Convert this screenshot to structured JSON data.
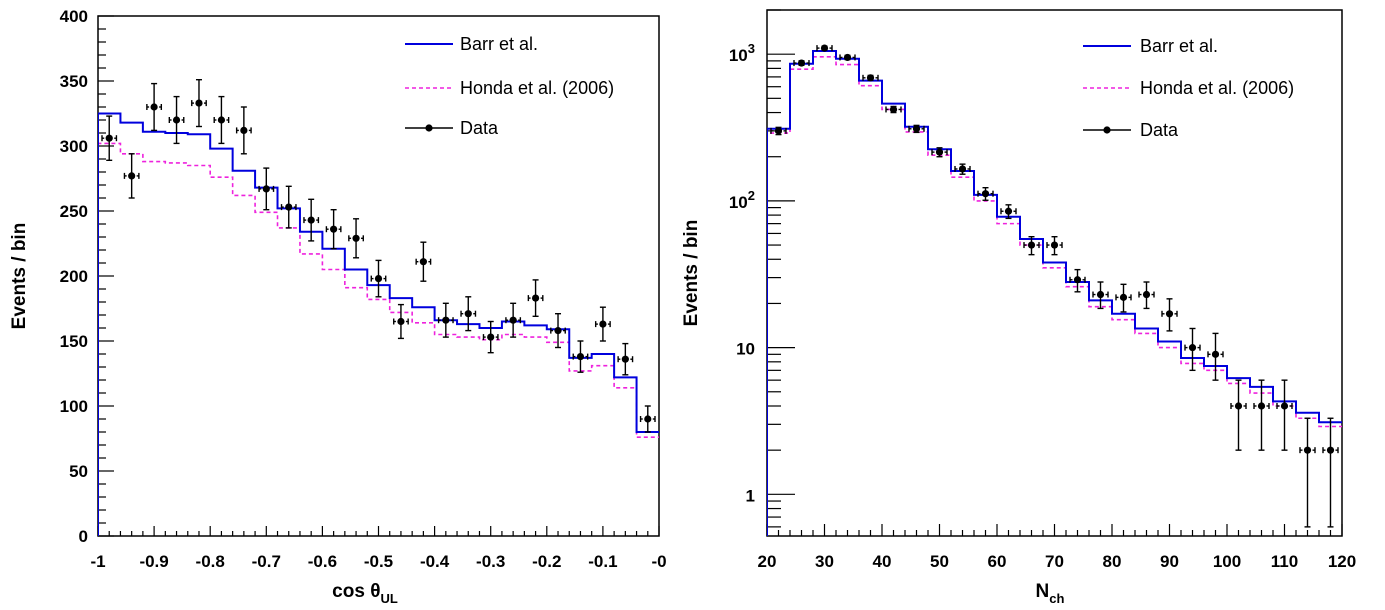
{
  "chart_data": [
    {
      "type": "line",
      "xlabel": "cos θ",
      "xlabel_sub": "UL",
      "ylabel": "Events / bin",
      "xlim": [
        -1,
        0
      ],
      "ylim": [
        0,
        400
      ],
      "xticks": [
        "-1",
        "-0.9",
        "-0.8",
        "-0.7",
        "-0.6",
        "-0.5",
        "-0.4",
        "-0.3",
        "-0.2",
        "-0.1",
        "-0"
      ],
      "yticks": [
        "0",
        "50",
        "100",
        "150",
        "200",
        "250",
        "300",
        "350",
        "400"
      ],
      "legend_position": "top-right",
      "bin_edges": [
        -1,
        -0.96,
        -0.92,
        -0.88,
        -0.84,
        -0.8,
        -0.76,
        -0.72,
        -0.68,
        -0.64,
        -0.6,
        -0.56,
        -0.52,
        -0.48,
        -0.44,
        -0.4,
        -0.36,
        -0.32,
        -0.28,
        -0.24,
        -0.2,
        -0.16,
        -0.12,
        -0.08,
        -0.04,
        0
      ],
      "series": [
        {
          "name": "Barr et al.",
          "kind": "histogram",
          "color": "#0000dd",
          "dash": "solid",
          "values": [
            325,
            318,
            311,
            310,
            309,
            298,
            281,
            268,
            252,
            234,
            221,
            205,
            193,
            183,
            176,
            166,
            163,
            160,
            165,
            162,
            159,
            137,
            140,
            122,
            80
          ]
        },
        {
          "name": "Honda et al. (2006)",
          "kind": "histogram",
          "color": "#ee22dd",
          "dash": "dashed",
          "values": [
            302,
            294,
            288,
            287,
            285,
            276,
            262,
            249,
            237,
            217,
            205,
            191,
            182,
            172,
            164,
            155,
            153,
            151,
            155,
            153,
            149,
            127,
            131,
            114,
            76
          ]
        },
        {
          "name": "Data",
          "kind": "points",
          "color": "#000000",
          "x": [
            -0.98,
            -0.94,
            -0.9,
            -0.86,
            -0.82,
            -0.78,
            -0.74,
            -0.7,
            -0.66,
            -0.62,
            -0.58,
            -0.54,
            -0.5,
            -0.46,
            -0.42,
            -0.38,
            -0.34,
            -0.3,
            -0.26,
            -0.22,
            -0.18,
            -0.14,
            -0.1,
            -0.06,
            -0.02
          ],
          "y": [
            306,
            277,
            330,
            320,
            333,
            320,
            312,
            267,
            253,
            243,
            236,
            229,
            198,
            165,
            211,
            166,
            171,
            153,
            166,
            183,
            158,
            138,
            163,
            136,
            90
          ],
          "yerr": [
            17,
            17,
            18,
            18,
            18,
            18,
            18,
            16,
            16,
            16,
            15,
            15,
            14,
            13,
            15,
            13,
            13,
            12,
            13,
            14,
            13,
            12,
            13,
            12,
            10
          ]
        }
      ]
    },
    {
      "type": "line",
      "xlabel": "N",
      "xlabel_sub": "ch",
      "ylabel": "Events / bin",
      "xlim": [
        20,
        120
      ],
      "ylim": [
        0.52,
        2000
      ],
      "yscale": "log",
      "xticks": [
        "20",
        "30",
        "40",
        "50",
        "60",
        "70",
        "80",
        "90",
        "100",
        "110",
        "120"
      ],
      "yticks": [
        {
          "value": 1,
          "label": "1"
        },
        {
          "value": 10,
          "label": "10"
        },
        {
          "value": 100,
          "label": "10",
          "sup": "2"
        },
        {
          "value": 1000,
          "label": "10",
          "sup": "3"
        }
      ],
      "legend_position": "top-right",
      "bin_edges": [
        20,
        24,
        28,
        32,
        36,
        40,
        44,
        48,
        52,
        56,
        60,
        64,
        68,
        72,
        76,
        80,
        84,
        88,
        92,
        96,
        100,
        104,
        108,
        112,
        116,
        120
      ],
      "series": [
        {
          "name": "Barr et al.",
          "kind": "histogram",
          "color": "#0000dd",
          "dash": "solid",
          "values": [
            310,
            860,
            1050,
            930,
            660,
            460,
            320,
            225,
            160,
            110,
            78,
            55,
            38,
            28,
            21,
            17,
            13.5,
            11,
            8.5,
            7.5,
            6.2,
            5.4,
            4.3,
            3.6,
            3.1
          ]
        },
        {
          "name": "Honda et al. (2006)",
          "kind": "histogram",
          "color": "#ee22dd",
          "dash": "dashed",
          "values": [
            290,
            790,
            960,
            850,
            610,
            420,
            295,
            205,
            145,
            100,
            70,
            50,
            35,
            26,
            19,
            15.5,
            12.5,
            10,
            7.8,
            7,
            5.7,
            4.9,
            4,
            3.3,
            2.9
          ]
        },
        {
          "name": "Data",
          "kind": "points",
          "color": "#000000",
          "x": [
            22,
            26,
            30,
            34,
            38,
            42,
            46,
            50,
            54,
            58,
            62,
            66,
            70,
            74,
            78,
            82,
            86,
            90,
            94,
            98,
            102,
            106,
            110,
            114,
            118
          ],
          "y": [
            300,
            870,
            1100,
            950,
            690,
            420,
            310,
            215,
            165,
            112,
            85,
            50,
            50,
            29,
            23,
            22,
            23,
            17,
            10,
            9,
            4,
            4,
            4,
            2,
            2
          ],
          "ylo": [
            283,
            840,
            1067,
            919,
            664,
            400,
            293,
            200,
            152,
            101,
            76,
            43,
            43,
            24,
            18.5,
            17.5,
            18.5,
            13,
            7,
            6,
            2,
            2,
            2,
            0.6,
            0.6
          ],
          "yhi": [
            317,
            900,
            1133,
            981,
            716,
            440,
            327,
            230,
            178,
            123,
            94,
            57,
            57,
            34,
            28,
            27,
            28,
            21.5,
            13.5,
            12.5,
            6,
            6,
            6,
            3.3,
            3.3
          ]
        }
      ]
    }
  ]
}
